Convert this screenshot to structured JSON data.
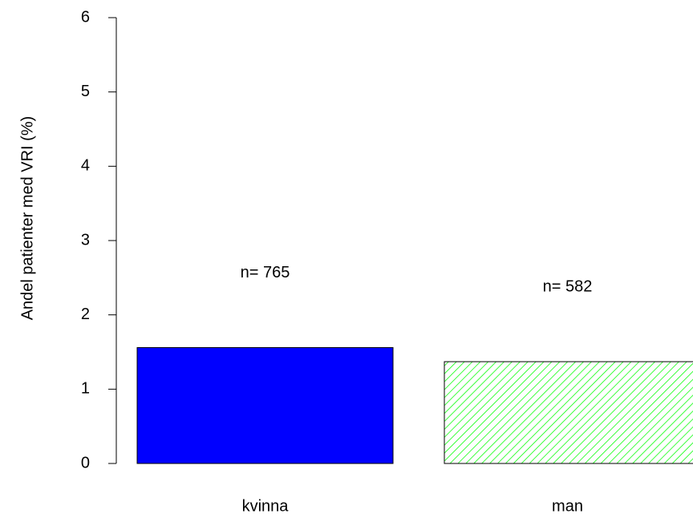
{
  "chart_data": {
    "type": "bar",
    "y_label": "Andel patienter med VRI (%)",
    "categories": [
      "kvinna",
      "man"
    ],
    "values": [
      1.56,
      1.37
    ],
    "annotations": [
      "n= 765",
      "n= 582"
    ],
    "colors": [
      "#0000ff",
      "#00ff00"
    ],
    "hatched": [
      false,
      true
    ],
    "ylim": [
      0,
      6
    ],
    "yticks": [
      0,
      1,
      2,
      3,
      4,
      5,
      6
    ]
  }
}
